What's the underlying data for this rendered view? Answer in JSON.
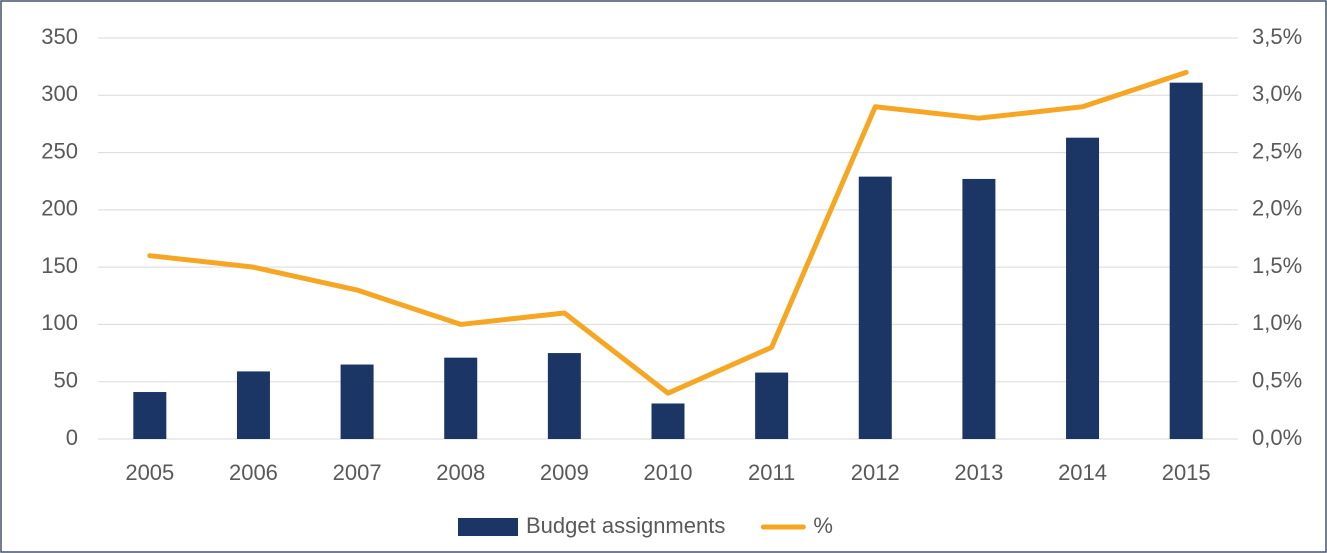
{
  "chart_data": {
    "type": "bar-line",
    "categories": [
      "2005",
      "2006",
      "2007",
      "2008",
      "2009",
      "2010",
      "2011",
      "2012",
      "2013",
      "2014",
      "2015"
    ],
    "series": [
      {
        "name": "Budget assignments",
        "type": "bar",
        "color": "#1b3565",
        "values": [
          41,
          59,
          65,
          71,
          75,
          31,
          58,
          229,
          227,
          263,
          311
        ]
      },
      {
        "name": "%",
        "type": "line",
        "axis": "y2",
        "color": "#f5a623",
        "values": [
          1.6,
          1.5,
          1.3,
          1.0,
          1.1,
          0.4,
          0.8,
          2.9,
          2.8,
          2.9,
          3.2
        ]
      }
    ],
    "ylim": [
      0,
      350
    ],
    "yticks": [
      0,
      50,
      100,
      150,
      200,
      250,
      300,
      350
    ],
    "y2lim": [
      0,
      3.5
    ],
    "y2ticks": [
      {
        "value": 0,
        "label": "0,0%"
      },
      {
        "value": 0.5,
        "label": "0,5%"
      },
      {
        "value": 1,
        "label": "1,0%"
      },
      {
        "value": 1.5,
        "label": "1,5%"
      },
      {
        "value": 2,
        "label": "2,0%"
      },
      {
        "value": 2.5,
        "label": "2,5%"
      },
      {
        "value": 3,
        "label": "3,0%"
      },
      {
        "value": 3.5,
        "label": "3,5%"
      }
    ],
    "grid": true,
    "legend": "bottom"
  }
}
